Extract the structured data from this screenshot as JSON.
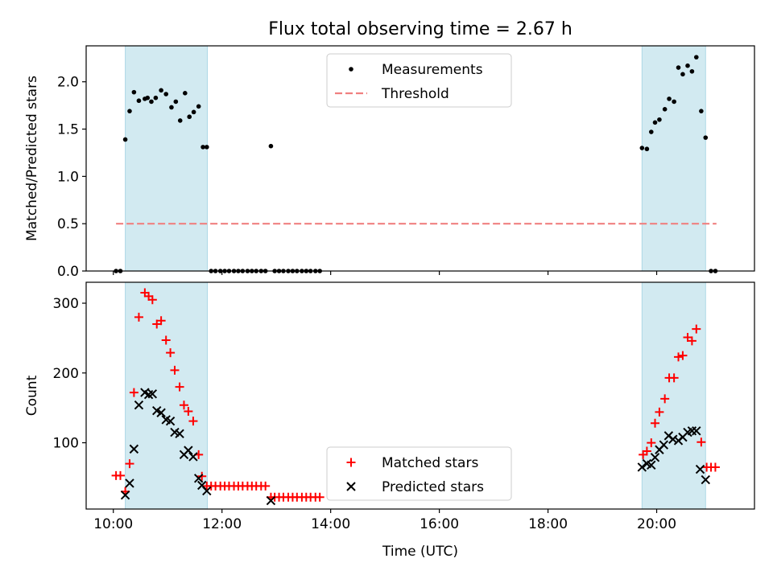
{
  "chart_data": {
    "title": "Flux total observing time = 2.67 h",
    "xlabel": "Time (UTC)",
    "x_unit": "hours UTC",
    "xlim": [
      9.5,
      21.8
    ],
    "xticks": [
      {
        "value": 10,
        "label": "10:00"
      },
      {
        "value": 12,
        "label": "12:00"
      },
      {
        "value": 14,
        "label": "14:00"
      },
      {
        "value": 16,
        "label": "16:00"
      },
      {
        "value": 18,
        "label": "18:00"
      },
      {
        "value": 20,
        "label": "20:00"
      }
    ],
    "shaded_intervals": [
      [
        10.22,
        11.73
      ],
      [
        19.73,
        20.9
      ]
    ],
    "shade_color": "#add8e6",
    "panels": [
      {
        "type": "scatter",
        "ylabel": "Matched/Predicted stars",
        "ylim": [
          0,
          2.38
        ],
        "yticks": [
          {
            "value": 0,
            "label": "0.0"
          },
          {
            "value": 0.5,
            "label": "0.5"
          },
          {
            "value": 1.0,
            "label": "1.0"
          },
          {
            "value": 1.5,
            "label": "1.5"
          },
          {
            "value": 2.0,
            "label": "2.0"
          }
        ],
        "legend": {
          "position": "top-center"
        },
        "series": [
          {
            "name": "Measurements",
            "marker": "dot",
            "color": "#000000",
            "points": [
              [
                10.05,
                0.0
              ],
              [
                10.13,
                0.0
              ],
              [
                10.22,
                1.39
              ],
              [
                10.3,
                1.69
              ],
              [
                10.38,
                1.89
              ],
              [
                10.47,
                1.8
              ],
              [
                10.58,
                1.82
              ],
              [
                10.63,
                1.83
              ],
              [
                10.7,
                1.79
              ],
              [
                10.78,
                1.83
              ],
              [
                10.88,
                1.91
              ],
              [
                10.97,
                1.87
              ],
              [
                11.07,
                1.73
              ],
              [
                11.15,
                1.79
              ],
              [
                11.23,
                1.59
              ],
              [
                11.32,
                1.88
              ],
              [
                11.4,
                1.63
              ],
              [
                11.48,
                1.68
              ],
              [
                11.57,
                1.74
              ],
              [
                11.65,
                1.31
              ],
              [
                11.72,
                1.31
              ],
              [
                11.8,
                0.0
              ],
              [
                11.88,
                0.0
              ],
              [
                11.97,
                0.0
              ],
              [
                12.05,
                0.0
              ],
              [
                12.13,
                0.0
              ],
              [
                12.22,
                0.0
              ],
              [
                12.3,
                0.0
              ],
              [
                12.38,
                0.0
              ],
              [
                12.47,
                0.0
              ],
              [
                12.55,
                0.0
              ],
              [
                12.63,
                0.0
              ],
              [
                12.72,
                0.0
              ],
              [
                12.8,
                0.0
              ],
              [
                12.9,
                1.32
              ],
              [
                12.97,
                0.0
              ],
              [
                13.05,
                0.0
              ],
              [
                13.13,
                0.0
              ],
              [
                13.22,
                0.0
              ],
              [
                13.3,
                0.0
              ],
              [
                13.38,
                0.0
              ],
              [
                13.47,
                0.0
              ],
              [
                13.55,
                0.0
              ],
              [
                13.63,
                0.0
              ],
              [
                13.72,
                0.0
              ],
              [
                13.8,
                0.0
              ],
              [
                19.73,
                1.3
              ],
              [
                19.82,
                1.29
              ],
              [
                19.9,
                1.47
              ],
              [
                19.97,
                1.57
              ],
              [
                20.05,
                1.6
              ],
              [
                20.15,
                1.71
              ],
              [
                20.23,
                1.82
              ],
              [
                20.32,
                1.79
              ],
              [
                20.4,
                2.15
              ],
              [
                20.48,
                2.08
              ],
              [
                20.57,
                2.17
              ],
              [
                20.65,
                2.11
              ],
              [
                20.73,
                2.26
              ],
              [
                20.82,
                1.69
              ],
              [
                20.9,
                1.41
              ],
              [
                21.0,
                0.0
              ],
              [
                21.08,
                0.0
              ]
            ]
          },
          {
            "name": "Threshold",
            "line": "dashed",
            "color": "#f08080",
            "points": [
              [
                10.05,
                0.5
              ],
              [
                21.1,
                0.5
              ]
            ]
          }
        ]
      },
      {
        "type": "scatter",
        "ylabel": "Count",
        "ylim": [
          5,
          330
        ],
        "yticks": [
          {
            "value": 100,
            "label": "100"
          },
          {
            "value": 200,
            "label": "200"
          },
          {
            "value": 300,
            "label": "300"
          }
        ],
        "legend": {
          "position": "bottom-center"
        },
        "series": [
          {
            "name": "Matched stars",
            "marker": "plus",
            "color": "#ff0000",
            "points": [
              [
                10.05,
                53
              ],
              [
                10.13,
                53
              ],
              [
                10.22,
                30
              ],
              [
                10.3,
                70
              ],
              [
                10.38,
                172
              ],
              [
                10.47,
                280
              ],
              [
                10.58,
                315
              ],
              [
                10.65,
                310
              ],
              [
                10.72,
                305
              ],
              [
                10.8,
                270
              ],
              [
                10.88,
                275
              ],
              [
                10.97,
                247
              ],
              [
                11.05,
                229
              ],
              [
                11.13,
                204
              ],
              [
                11.22,
                180
              ],
              [
                11.3,
                154
              ],
              [
                11.38,
                145
              ],
              [
                11.47,
                131
              ],
              [
                11.57,
                83
              ],
              [
                11.63,
                52
              ],
              [
                11.72,
                38
              ],
              [
                11.8,
                38
              ],
              [
                11.88,
                38
              ],
              [
                11.97,
                38
              ],
              [
                12.05,
                38
              ],
              [
                12.13,
                38
              ],
              [
                12.22,
                38
              ],
              [
                12.3,
                38
              ],
              [
                12.38,
                38
              ],
              [
                12.47,
                38
              ],
              [
                12.55,
                38
              ],
              [
                12.63,
                38
              ],
              [
                12.72,
                38
              ],
              [
                12.8,
                38
              ],
              [
                12.9,
                22
              ],
              [
                12.97,
                22
              ],
              [
                13.05,
                22
              ],
              [
                13.13,
                22
              ],
              [
                13.22,
                22
              ],
              [
                13.3,
                22
              ],
              [
                13.38,
                22
              ],
              [
                13.47,
                22
              ],
              [
                13.55,
                22
              ],
              [
                13.63,
                22
              ],
              [
                13.72,
                22
              ],
              [
                13.8,
                22
              ],
              [
                19.75,
                83
              ],
              [
                19.82,
                88
              ],
              [
                19.9,
                100
              ],
              [
                19.97,
                128
              ],
              [
                20.05,
                144
              ],
              [
                20.15,
                163
              ],
              [
                20.23,
                193
              ],
              [
                20.32,
                193
              ],
              [
                20.4,
                223
              ],
              [
                20.48,
                225
              ],
              [
                20.57,
                251
              ],
              [
                20.65,
                246
              ],
              [
                20.73,
                263
              ],
              [
                20.82,
                101
              ],
              [
                20.92,
                65
              ],
              [
                21.0,
                65
              ],
              [
                21.08,
                65
              ]
            ]
          },
          {
            "name": "Predicted stars",
            "marker": "x",
            "color": "#000000",
            "points": [
              [
                10.22,
                25
              ],
              [
                10.3,
                42
              ],
              [
                10.38,
                91
              ],
              [
                10.47,
                154
              ],
              [
                10.58,
                172
              ],
              [
                10.65,
                169
              ],
              [
                10.72,
                170
              ],
              [
                10.8,
                146
              ],
              [
                10.88,
                143
              ],
              [
                10.97,
                133
              ],
              [
                11.05,
                131
              ],
              [
                11.13,
                115
              ],
              [
                11.22,
                113
              ],
              [
                11.3,
                83
              ],
              [
                11.38,
                89
              ],
              [
                11.47,
                80
              ],
              [
                11.57,
                49
              ],
              [
                11.63,
                39
              ],
              [
                11.72,
                31
              ],
              [
                12.9,
                17
              ],
              [
                19.73,
                65
              ],
              [
                19.82,
                70
              ],
              [
                19.9,
                68
              ],
              [
                19.97,
                79
              ],
              [
                20.05,
                90
              ],
              [
                20.13,
                97
              ],
              [
                20.22,
                110
              ],
              [
                20.3,
                105
              ],
              [
                20.4,
                103
              ],
              [
                20.48,
                108
              ],
              [
                20.57,
                115
              ],
              [
                20.65,
                117
              ],
              [
                20.73,
                117
              ],
              [
                20.8,
                62
              ],
              [
                20.9,
                47
              ]
            ]
          }
        ]
      }
    ]
  }
}
